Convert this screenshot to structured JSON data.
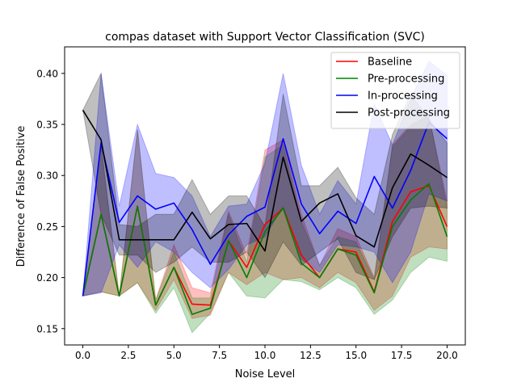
{
  "chart_data": {
    "type": "line",
    "title": "compas dataset with Support Vector Classification (SVC)",
    "xlabel": "Noise Level",
    "ylabel": "Difference of False Positive",
    "xlim": [
      -1.0,
      21.0
    ],
    "ylim": [
      0.134,
      0.426
    ],
    "xticks": [
      0.0,
      2.5,
      5.0,
      7.5,
      10.0,
      12.5,
      15.0,
      17.5,
      20.0
    ],
    "xtick_labels": [
      "0.0",
      "2.5",
      "5.0",
      "7.5",
      "10.0",
      "12.5",
      "15.0",
      "17.5",
      "20.0"
    ],
    "yticks": [
      0.15,
      0.2,
      0.25,
      0.3,
      0.35,
      0.4
    ],
    "ytick_labels": [
      "0.15",
      "0.20",
      "0.25",
      "0.30",
      "0.35",
      "0.40"
    ],
    "grid": false,
    "legend_position": "top-right",
    "x": [
      0,
      1,
      2,
      3,
      4,
      5,
      6,
      7,
      8,
      9,
      10,
      11,
      12,
      13,
      14,
      15,
      16,
      17,
      18,
      19,
      20
    ],
    "series": [
      {
        "name": "Baseline",
        "color": "#ff0000",
        "band_alpha": 0.25,
        "values": [
          0.182,
          0.262,
          0.182,
          0.27,
          0.173,
          0.21,
          0.174,
          0.173,
          0.236,
          0.21,
          0.252,
          0.268,
          0.222,
          0.2,
          0.228,
          0.225,
          0.186,
          0.255,
          0.284,
          0.29,
          0.25
        ],
        "lower": [
          0.182,
          0.186,
          0.182,
          0.195,
          0.168,
          0.198,
          0.16,
          0.163,
          0.205,
          0.193,
          0.205,
          0.198,
          0.2,
          0.19,
          0.205,
          0.195,
          0.168,
          0.182,
          0.22,
          0.23,
          0.228
        ],
        "upper": [
          0.182,
          0.33,
          0.182,
          0.345,
          0.178,
          0.232,
          0.19,
          0.185,
          0.265,
          0.222,
          0.325,
          0.335,
          0.262,
          0.212,
          0.248,
          0.24,
          0.2,
          0.33,
          0.35,
          0.358,
          0.275
        ]
      },
      {
        "name": "Pre-processing",
        "color": "#008000",
        "band_alpha": 0.25,
        "values": [
          0.182,
          0.262,
          0.182,
          0.27,
          0.173,
          0.21,
          0.164,
          0.17,
          0.236,
          0.2,
          0.245,
          0.268,
          0.214,
          0.2,
          0.228,
          0.222,
          0.185,
          0.25,
          0.276,
          0.292,
          0.24
        ],
        "lower": [
          0.182,
          0.186,
          0.182,
          0.195,
          0.165,
          0.19,
          0.146,
          0.165,
          0.205,
          0.182,
          0.18,
          0.198,
          0.196,
          0.188,
          0.2,
          0.19,
          0.164,
          0.178,
          0.205,
          0.22,
          0.216
        ],
        "upper": [
          0.182,
          0.33,
          0.182,
          0.345,
          0.178,
          0.225,
          0.18,
          0.18,
          0.262,
          0.215,
          0.318,
          0.33,
          0.255,
          0.212,
          0.24,
          0.235,
          0.198,
          0.328,
          0.348,
          0.36,
          0.268
        ]
      },
      {
        "name": "In-processing",
        "color": "#0000ff",
        "band_alpha": 0.25,
        "values": [
          0.182,
          0.332,
          0.254,
          0.28,
          0.267,
          0.273,
          0.247,
          0.213,
          0.242,
          0.26,
          0.269,
          0.336,
          0.272,
          0.243,
          0.265,
          0.253,
          0.299,
          0.268,
          0.305,
          0.352,
          0.336
        ],
        "lower": [
          0.182,
          0.185,
          0.232,
          0.21,
          0.235,
          0.225,
          0.205,
          0.19,
          0.208,
          0.232,
          0.24,
          0.27,
          0.218,
          0.205,
          0.232,
          0.23,
          0.225,
          0.195,
          0.225,
          0.282,
          0.275
        ],
        "upper": [
          0.182,
          0.4,
          0.27,
          0.35,
          0.302,
          0.298,
          0.28,
          0.24,
          0.27,
          0.272,
          0.312,
          0.4,
          0.31,
          0.262,
          0.295,
          0.272,
          0.37,
          0.33,
          0.375,
          0.412,
          0.398
        ]
      },
      {
        "name": "Post-processing",
        "color": "#000000",
        "band_alpha": 0.25,
        "values": [
          0.364,
          0.335,
          0.237,
          0.237,
          0.237,
          0.237,
          0.264,
          0.238,
          0.252,
          0.253,
          0.226,
          0.318,
          0.255,
          0.273,
          0.282,
          0.241,
          0.23,
          0.288,
          0.321,
          0.31,
          0.298
        ],
        "lower": [
          0.364,
          0.262,
          0.222,
          0.222,
          0.205,
          0.215,
          0.23,
          0.215,
          0.215,
          0.225,
          0.2,
          0.235,
          0.212,
          0.225,
          0.238,
          0.205,
          0.198,
          0.24,
          0.268,
          0.27,
          0.268
        ],
        "upper": [
          0.364,
          0.4,
          0.252,
          0.25,
          0.262,
          0.262,
          0.296,
          0.262,
          0.28,
          0.28,
          0.25,
          0.38,
          0.29,
          0.29,
          0.308,
          0.278,
          0.262,
          0.34,
          0.38,
          0.355,
          0.332
        ]
      }
    ]
  }
}
